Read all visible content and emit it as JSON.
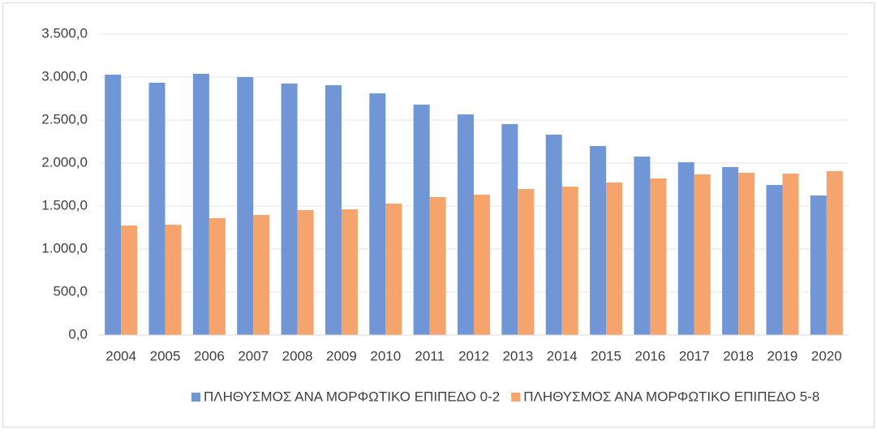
{
  "chart_data": {
    "type": "bar",
    "categories": [
      "2004",
      "2005",
      "2006",
      "2007",
      "2008",
      "2009",
      "2010",
      "2011",
      "2012",
      "2013",
      "2014",
      "2015",
      "2016",
      "2017",
      "2018",
      "2019",
      "2020"
    ],
    "series": [
      {
        "name": "ΠΛΗΘΥΣΜΟΣ ΑΝΑ ΜΟΡΦΩΤΙΚΟ ΕΠΙΠΕΔΟ 0-2",
        "color": "#7096d6",
        "values": [
          3028,
          2934,
          3038,
          3000,
          2925,
          2905,
          2810,
          2680,
          2566,
          2453,
          2330,
          2198,
          2075,
          2010,
          1953,
          1745,
          1623
        ]
      },
      {
        "name": "ΠΛΗΘΥΣΜΟΣ ΑΝΑ ΜΟΡΦΩΤΙΚΟ ΕΠΙΠΕΔΟ 5-8",
        "color": "#f4a46c",
        "values": [
          1274,
          1283,
          1359,
          1396,
          1453,
          1462,
          1528,
          1604,
          1632,
          1698,
          1726,
          1774,
          1821,
          1868,
          1887,
          1877,
          1906
        ]
      }
    ],
    "ylim": [
      0,
      3500
    ],
    "yticks": [
      {
        "value": 0,
        "label": "0,0"
      },
      {
        "value": 500,
        "label": "500,0"
      },
      {
        "value": 1000,
        "label": "1.000,0"
      },
      {
        "value": 1500,
        "label": "1.500,0"
      },
      {
        "value": 2000,
        "label": "2.000,0"
      },
      {
        "value": 2500,
        "label": "2.500,0"
      },
      {
        "value": 3000,
        "label": "3.000,0"
      },
      {
        "value": 3500,
        "label": "3.500,0"
      }
    ],
    "grid": true,
    "legend": "bottom"
  }
}
